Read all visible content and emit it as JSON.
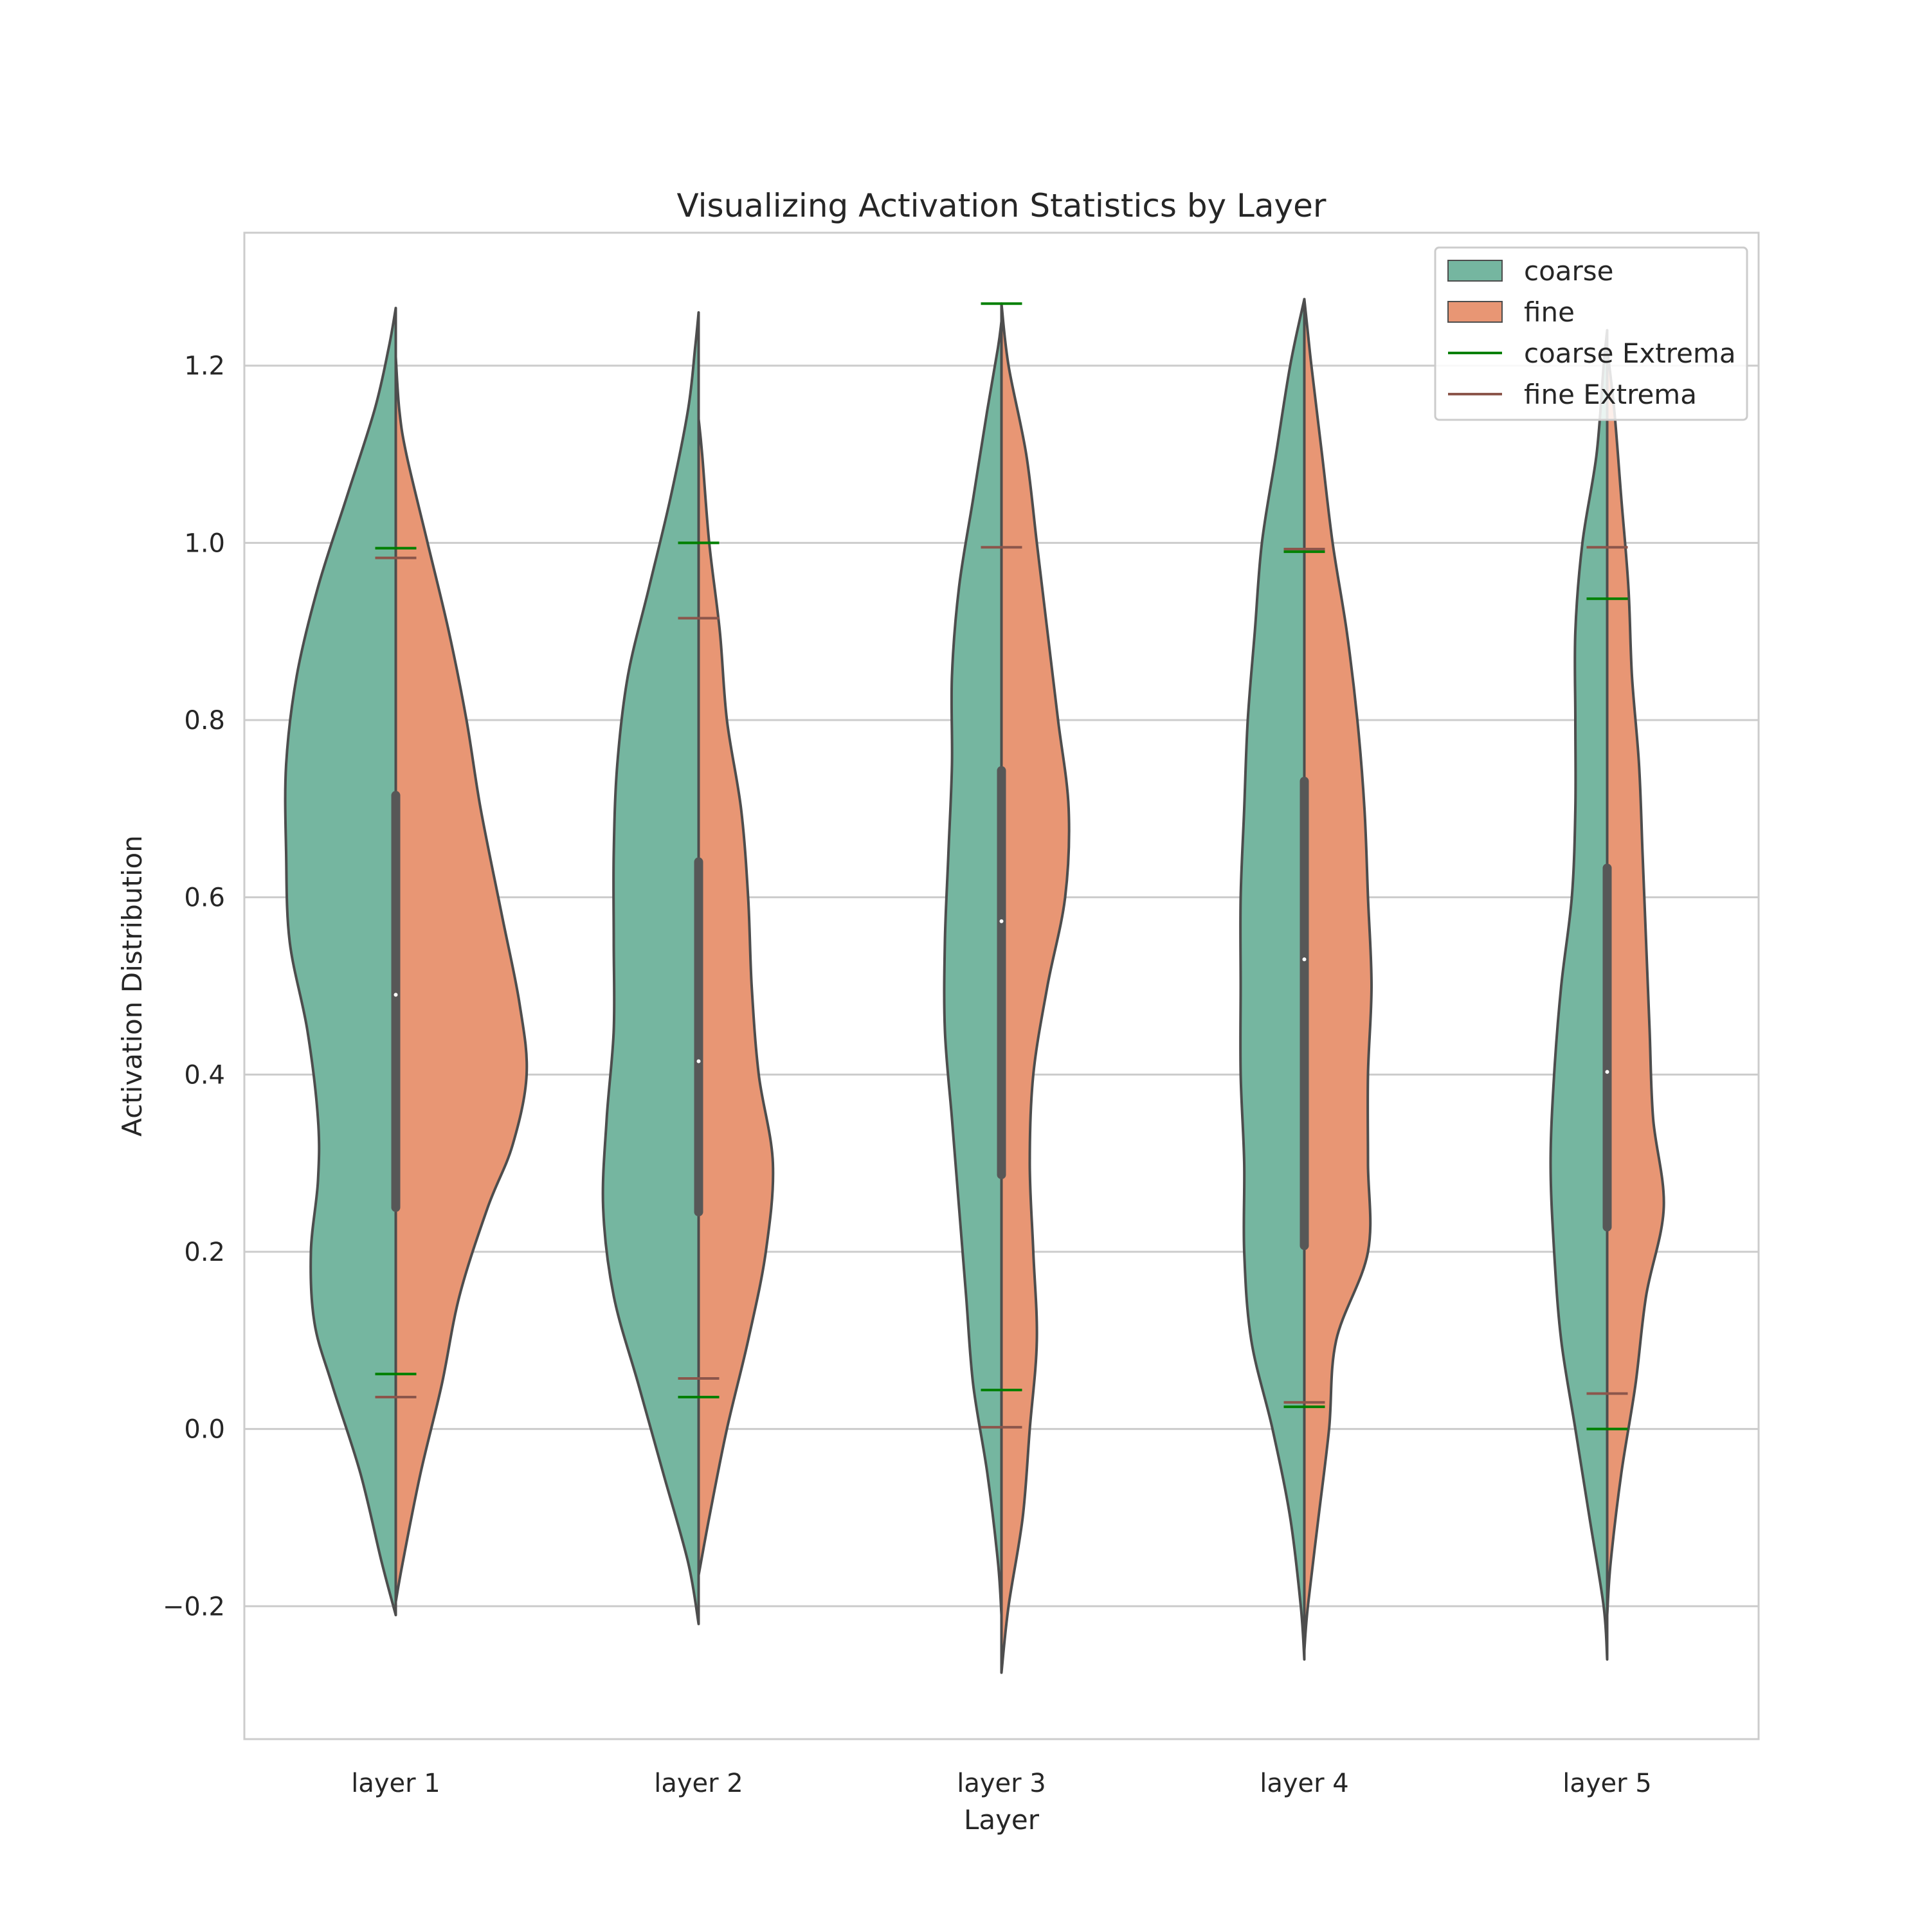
{
  "chart_data": {
    "type": "violin",
    "title": "Visualizing Activation Statistics by Layer",
    "xlabel": "Layer",
    "ylabel": "Activation Distribution",
    "categories": [
      "layer 1",
      "layer 2",
      "layer 3",
      "layer 4",
      "layer 5"
    ],
    "ylim": [
      -0.35,
      1.35
    ],
    "yticks": [
      -0.2,
      0.0,
      0.2,
      0.4,
      0.6,
      0.8,
      1.0,
      1.2
    ],
    "ytick_labels": [
      "−0.2",
      "0.0",
      "0.2",
      "0.4",
      "0.6",
      "0.8",
      "1.0",
      "1.2"
    ],
    "grid": true,
    "legend_placement": "top-right",
    "colors": {
      "coarse": "#75b6a0",
      "fine": "#e89674",
      "coarse_extrema": "#008000",
      "fine_extrema": "#8c564b",
      "outline": "#4d4d4d",
      "box": "#575757",
      "grid": "#cccccc"
    },
    "legend": [
      {
        "label": "coarse",
        "kind": "patch",
        "color_key": "coarse"
      },
      {
        "label": "fine",
        "kind": "patch",
        "color_key": "fine"
      },
      {
        "label": "coarse Extrema",
        "kind": "line",
        "color_key": "coarse_extrema"
      },
      {
        "label": "fine Extrema",
        "kind": "line",
        "color_key": "fine_extrema"
      }
    ],
    "series": [
      {
        "name": "coarse",
        "side": "left"
      },
      {
        "name": "fine",
        "side": "right"
      }
    ],
    "violins": [
      {
        "category": "layer 1",
        "coarse_density": [
          [
            -0.21,
            0.0
          ],
          [
            -0.15,
            0.04
          ],
          [
            -0.05,
            0.1
          ],
          [
            0.05,
            0.18
          ],
          [
            0.12,
            0.23
          ],
          [
            0.2,
            0.24
          ],
          [
            0.28,
            0.22
          ],
          [
            0.35,
            0.22
          ],
          [
            0.45,
            0.25
          ],
          [
            0.55,
            0.3
          ],
          [
            0.65,
            0.31
          ],
          [
            0.75,
            0.31
          ],
          [
            0.85,
            0.28
          ],
          [
            0.95,
            0.22
          ],
          [
            1.05,
            0.14
          ],
          [
            1.15,
            0.06
          ],
          [
            1.22,
            0.02
          ],
          [
            1.265,
            0.0
          ]
        ],
        "fine_density": [
          [
            -0.195,
            0.0
          ],
          [
            -0.15,
            0.02
          ],
          [
            -0.05,
            0.07
          ],
          [
            0.05,
            0.13
          ],
          [
            0.15,
            0.18
          ],
          [
            0.25,
            0.26
          ],
          [
            0.32,
            0.33
          ],
          [
            0.4,
            0.37
          ],
          [
            0.48,
            0.35
          ],
          [
            0.58,
            0.3
          ],
          [
            0.7,
            0.24
          ],
          [
            0.8,
            0.2
          ],
          [
            0.9,
            0.15
          ],
          [
            1.0,
            0.09
          ],
          [
            1.1,
            0.03
          ],
          [
            1.15,
            0.01
          ],
          [
            1.21,
            0.0
          ]
        ],
        "median": 0.49,
        "q1": 0.25,
        "q3": 0.715,
        "coarse_extrema": [
          0.062,
          0.994
        ],
        "fine_extrema": [
          0.036,
          0.983
        ]
      },
      {
        "category": "layer 2",
        "coarse_density": [
          [
            -0.22,
            0.0
          ],
          [
            -0.15,
            0.03
          ],
          [
            -0.05,
            0.1
          ],
          [
            0.05,
            0.17
          ],
          [
            0.15,
            0.24
          ],
          [
            0.25,
            0.27
          ],
          [
            0.35,
            0.26
          ],
          [
            0.45,
            0.24
          ],
          [
            0.55,
            0.24
          ],
          [
            0.65,
            0.24
          ],
          [
            0.75,
            0.23
          ],
          [
            0.85,
            0.2
          ],
          [
            0.95,
            0.14
          ],
          [
            1.05,
            0.08
          ],
          [
            1.15,
            0.03
          ],
          [
            1.22,
            0.01
          ],
          [
            1.26,
            0.0
          ]
        ],
        "fine_density": [
          [
            -0.165,
            0.0
          ],
          [
            -0.1,
            0.03
          ],
          [
            0.0,
            0.08
          ],
          [
            0.1,
            0.14
          ],
          [
            0.2,
            0.19
          ],
          [
            0.3,
            0.21
          ],
          [
            0.4,
            0.17
          ],
          [
            0.5,
            0.15
          ],
          [
            0.6,
            0.14
          ],
          [
            0.7,
            0.12
          ],
          [
            0.8,
            0.08
          ],
          [
            0.9,
            0.06
          ],
          [
            1.0,
            0.03
          ],
          [
            1.1,
            0.01
          ],
          [
            1.14,
            0.0
          ]
        ],
        "median": 0.415,
        "q1": 0.245,
        "q3": 0.64,
        "coarse_extrema": [
          0.036,
          1.0
        ],
        "fine_extrema": [
          0.057,
          0.915
        ]
      },
      {
        "category": "layer 3",
        "coarse_density": [
          [
            -0.21,
            0.0
          ],
          [
            -0.15,
            0.01
          ],
          [
            -0.05,
            0.04
          ],
          [
            0.05,
            0.08
          ],
          [
            0.15,
            0.1
          ],
          [
            0.25,
            0.12
          ],
          [
            0.35,
            0.14
          ],
          [
            0.45,
            0.16
          ],
          [
            0.55,
            0.16
          ],
          [
            0.65,
            0.15
          ],
          [
            0.75,
            0.14
          ],
          [
            0.85,
            0.14
          ],
          [
            0.95,
            0.12
          ],
          [
            1.05,
            0.08
          ],
          [
            1.15,
            0.04
          ],
          [
            1.22,
            0.01
          ],
          [
            1.25,
            0.0
          ]
        ],
        "fine_density": [
          [
            -0.275,
            0.0
          ],
          [
            -0.2,
            0.02
          ],
          [
            -0.1,
            0.06
          ],
          [
            0.0,
            0.08
          ],
          [
            0.1,
            0.1
          ],
          [
            0.2,
            0.09
          ],
          [
            0.3,
            0.08
          ],
          [
            0.4,
            0.09
          ],
          [
            0.5,
            0.13
          ],
          [
            0.6,
            0.18
          ],
          [
            0.7,
            0.19
          ],
          [
            0.8,
            0.16
          ],
          [
            0.9,
            0.13
          ],
          [
            1.0,
            0.1
          ],
          [
            1.1,
            0.07
          ],
          [
            1.2,
            0.02
          ],
          [
            1.27,
            0.0
          ]
        ],
        "median": 0.573,
        "q1": 0.287,
        "q3": 0.743,
        "coarse_extrema": [
          0.044,
          1.27
        ],
        "fine_extrema": [
          0.002,
          0.995
        ]
      },
      {
        "category": "layer 4",
        "coarse_density": [
          [
            -0.26,
            0.0
          ],
          [
            -0.2,
            0.01
          ],
          [
            -0.1,
            0.04
          ],
          [
            0.0,
            0.09
          ],
          [
            0.1,
            0.15
          ],
          [
            0.2,
            0.17
          ],
          [
            0.3,
            0.17
          ],
          [
            0.4,
            0.18
          ],
          [
            0.5,
            0.18
          ],
          [
            0.6,
            0.18
          ],
          [
            0.7,
            0.17
          ],
          [
            0.8,
            0.16
          ],
          [
            0.9,
            0.14
          ],
          [
            1.0,
            0.12
          ],
          [
            1.1,
            0.08
          ],
          [
            1.2,
            0.04
          ],
          [
            1.275,
            0.0
          ]
        ],
        "fine_density": [
          [
            -0.25,
            0.0
          ],
          [
            -0.2,
            0.01
          ],
          [
            -0.1,
            0.04
          ],
          [
            0.0,
            0.07
          ],
          [
            0.1,
            0.09
          ],
          [
            0.2,
            0.18
          ],
          [
            0.3,
            0.18
          ],
          [
            0.4,
            0.18
          ],
          [
            0.5,
            0.19
          ],
          [
            0.6,
            0.18
          ],
          [
            0.7,
            0.17
          ],
          [
            0.8,
            0.15
          ],
          [
            0.9,
            0.12
          ],
          [
            1.0,
            0.08
          ],
          [
            1.1,
            0.05
          ],
          [
            1.2,
            0.02
          ],
          [
            1.275,
            0.0
          ]
        ],
        "median": 0.53,
        "q1": 0.207,
        "q3": 0.731,
        "coarse_extrema": [
          0.025,
          0.99
        ],
        "fine_extrema": [
          0.03,
          0.993
        ]
      },
      {
        "category": "layer 5",
        "coarse_density": [
          [
            -0.26,
            0.0
          ],
          [
            -0.2,
            0.01
          ],
          [
            -0.1,
            0.05
          ],
          [
            0.0,
            0.09
          ],
          [
            0.1,
            0.13
          ],
          [
            0.2,
            0.15
          ],
          [
            0.3,
            0.16
          ],
          [
            0.4,
            0.15
          ],
          [
            0.5,
            0.13
          ],
          [
            0.6,
            0.1
          ],
          [
            0.7,
            0.09
          ],
          [
            0.8,
            0.09
          ],
          [
            0.9,
            0.09
          ],
          [
            1.0,
            0.07
          ],
          [
            1.1,
            0.03
          ],
          [
            1.2,
            0.01
          ],
          [
            1.24,
            0.0
          ]
        ],
        "fine_density": [
          [
            -0.21,
            0.0
          ],
          [
            -0.15,
            0.01
          ],
          [
            -0.05,
            0.04
          ],
          [
            0.05,
            0.08
          ],
          [
            0.15,
            0.11
          ],
          [
            0.25,
            0.16
          ],
          [
            0.35,
            0.13
          ],
          [
            0.45,
            0.12
          ],
          [
            0.55,
            0.11
          ],
          [
            0.65,
            0.1
          ],
          [
            0.75,
            0.09
          ],
          [
            0.85,
            0.07
          ],
          [
            0.95,
            0.06
          ],
          [
            1.05,
            0.04
          ],
          [
            1.15,
            0.02
          ],
          [
            1.22,
            0.0
          ]
        ],
        "median": 0.403,
        "q1": 0.228,
        "q3": 0.633,
        "coarse_extrema": [
          0.0,
          0.937
        ],
        "fine_extrema": [
          0.04,
          0.995
        ]
      }
    ]
  }
}
